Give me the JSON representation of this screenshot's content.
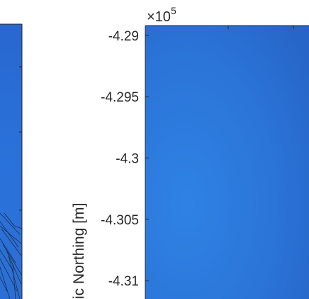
{
  "chart_data": [
    {
      "type": "heatmap",
      "panel": "left",
      "title": "",
      "xlabel": "",
      "ylabel": ""
    },
    {
      "type": "heatmap",
      "panel": "right",
      "title": "",
      "xlabel": "",
      "ylabel": "ic Northing [m]",
      "y_exponent_label": "×10",
      "y_exponent_power": "5",
      "yticks": [
        -4.29,
        -4.295,
        -4.3,
        -4.305,
        -4.31
      ],
      "ytick_labels": [
        "-4.29",
        "-4.295",
        "-4.3",
        "-4.305",
        "-4.31"
      ],
      "ylim": [
        -4.3115,
        -4.2892
      ],
      "fill_color": "#2f7ad8"
    }
  ]
}
